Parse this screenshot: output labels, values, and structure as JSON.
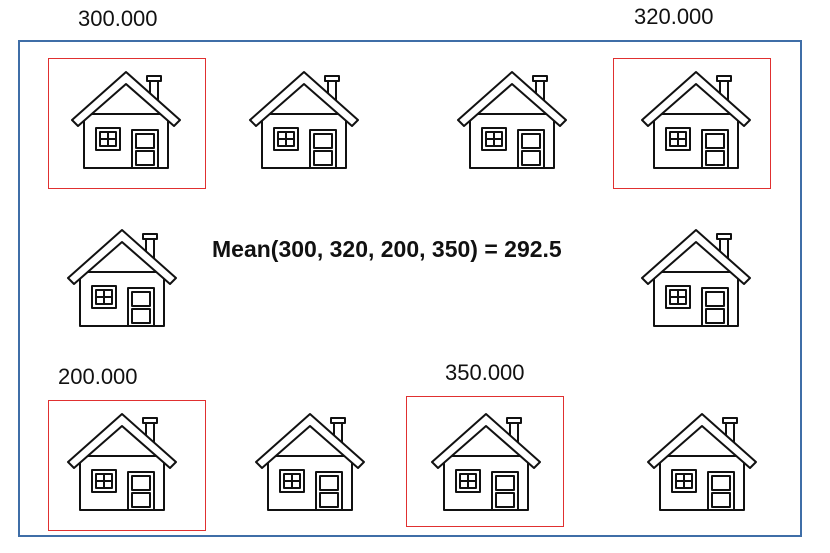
{
  "price_labels": {
    "house_1": "300.000",
    "house_4": "320.000",
    "house_7": "200.000",
    "house_9": "350.000"
  },
  "formula": "Mean(300, 320, 200, 350) = 292.5",
  "colors": {
    "frame": "#3f6ea7",
    "highlight": "#e03030",
    "icon_stroke": "#111111"
  },
  "icons": [
    "house-icon"
  ]
}
